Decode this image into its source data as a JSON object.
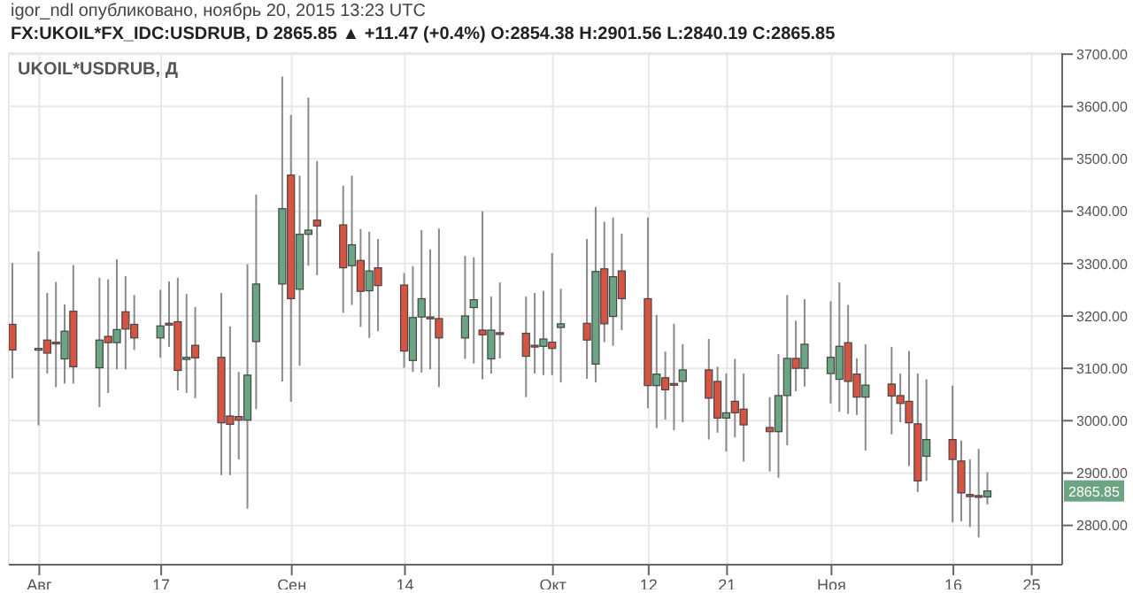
{
  "chart_data": {
    "type": "candlestick",
    "title": "UKOIL*USDRUB, Д",
    "subtitle": "FX:UKOIL*FX_IDC:USDRUB, D  2865.85 ▲ +11.47 (+0.4%) O:2854.38 H:2901.56 L:2840.19 C:2865.85",
    "annotations": [
      "igor_ndl опубликовано, ноябрь 20, 2015 13:23 UTC",
      {
        "text": "2865.85",
        "y": 2865.85
      }
    ],
    "x": [
      "2015-07-31",
      "2015-08-03",
      "2015-08-04",
      "2015-08-05",
      "2015-08-06",
      "2015-08-07",
      "2015-08-10",
      "2015-08-11",
      "2015-08-12",
      "2015-08-13",
      "2015-08-14",
      "2015-08-17",
      "2015-08-18",
      "2015-08-19",
      "2015-08-20",
      "2015-08-21",
      "2015-08-24",
      "2015-08-25",
      "2015-08-26",
      "2015-08-27",
      "2015-08-28",
      "2015-08-31",
      "2015-09-01",
      "2015-09-02",
      "2015-09-03",
      "2015-09-04",
      "2015-09-07",
      "2015-09-08",
      "2015-09-09",
      "2015-09-10",
      "2015-09-11",
      "2015-09-14",
      "2015-09-15",
      "2015-09-16",
      "2015-09-17",
      "2015-09-18",
      "2015-09-21",
      "2015-09-22",
      "2015-09-23",
      "2015-09-24",
      "2015-09-25",
      "2015-09-28",
      "2015-09-29",
      "2015-09-30",
      "2015-10-01",
      "2015-10-02",
      "2015-10-05",
      "2015-10-06",
      "2015-10-07",
      "2015-10-08",
      "2015-10-09",
      "2015-10-12",
      "2015-10-13",
      "2015-10-14",
      "2015-10-15",
      "2015-10-16",
      "2015-10-19",
      "2015-10-20",
      "2015-10-21",
      "2015-10-22",
      "2015-10-23",
      "2015-10-26",
      "2015-10-27",
      "2015-10-28",
      "2015-10-29",
      "2015-10-30",
      "2015-11-02",
      "2015-11-03",
      "2015-11-04",
      "2015-11-05",
      "2015-11-06",
      "2015-11-09",
      "2015-11-10",
      "2015-11-11",
      "2015-11-12",
      "2015-11-13",
      "2015-11-16",
      "2015-11-17",
      "2015-11-18",
      "2015-11-19",
      "2015-11-20"
    ],
    "ohlc": [
      [
        3184,
        3301,
        3081,
        3135
      ],
      [
        3135,
        3323,
        2991,
        3138
      ],
      [
        3154,
        3244,
        3090,
        3129
      ],
      [
        3150,
        3265,
        3064,
        3147
      ],
      [
        3118,
        3222,
        3071,
        3171
      ],
      [
        3209,
        3297,
        3071,
        3103
      ],
      [
        3101,
        3273,
        3026,
        3154
      ],
      [
        3161,
        3270,
        3053,
        3149
      ],
      [
        3149,
        3308,
        3098,
        3174
      ],
      [
        3208,
        3276,
        3098,
        3175
      ],
      [
        3184,
        3240,
        3135,
        3158
      ],
      [
        3158,
        3250,
        3120,
        3181
      ],
      [
        3186,
        3266,
        3141,
        3184
      ],
      [
        3189,
        3273,
        3058,
        3096
      ],
      [
        3117,
        3242,
        3053,
        3121
      ],
      [
        3144,
        3217,
        3043,
        3120
      ],
      [
        3121,
        3244,
        2896,
        2996
      ],
      [
        3009,
        3180,
        2896,
        2993
      ],
      [
        3008,
        3093,
        2926,
        3001
      ],
      [
        3001,
        3299,
        2832,
        3087
      ],
      [
        3151,
        3432,
        3022,
        3261
      ],
      [
        3261,
        3657,
        3075,
        3405
      ],
      [
        3469,
        3584,
        3036,
        3233
      ],
      [
        3251,
        3468,
        3105,
        3356
      ],
      [
        3356,
        3617,
        3296,
        3364
      ],
      [
        3383,
        3496,
        3278,
        3372
      ],
      [
        3374,
        3449,
        3206,
        3292
      ],
      [
        3296,
        3468,
        3221,
        3336
      ],
      [
        3306,
        3366,
        3179,
        3247
      ],
      [
        3248,
        3361,
        3158,
        3286
      ],
      [
        3292,
        3347,
        3171,
        3258
      ],
      [
        3259,
        3282,
        3101,
        3133
      ],
      [
        3115,
        3295,
        3093,
        3197
      ],
      [
        3198,
        3364,
        3092,
        3233
      ],
      [
        3198,
        3327,
        3098,
        3197
      ],
      [
        3195,
        3367,
        3064,
        3158
      ],
      [
        3158,
        3315,
        3118,
        3200
      ],
      [
        3216,
        3312,
        3109,
        3231
      ],
      [
        3173,
        3400,
        3079,
        3164
      ],
      [
        3118,
        3237,
        3090,
        3173
      ],
      [
        3168,
        3264,
        3119,
        3167
      ],
      [
        3167,
        3237,
        3045,
        3123
      ],
      [
        3144,
        3244,
        3090,
        3141
      ],
      [
        3142,
        3248,
        3087,
        3156
      ],
      [
        3150,
        3320,
        3087,
        3138
      ],
      [
        3178,
        3252,
        3073,
        3185
      ],
      [
        3186,
        3347,
        3080,
        3154
      ],
      [
        3108,
        3408,
        3073,
        3285
      ],
      [
        3290,
        3380,
        3150,
        3185
      ],
      [
        3199,
        3388,
        3143,
        3275
      ],
      [
        3286,
        3357,
        3173,
        3233
      ],
      [
        3233,
        3388,
        3024,
        3067
      ],
      [
        3067,
        3202,
        2986,
        3089
      ],
      [
        3082,
        3132,
        3002,
        3059
      ],
      [
        3071,
        3185,
        2982,
        3069
      ],
      [
        3075,
        3146,
        2997,
        3097
      ],
      [
        3097,
        3156,
        2964,
        3043
      ],
      [
        3075,
        3103,
        2977,
        3005
      ],
      [
        3005,
        3090,
        2941,
        3015
      ],
      [
        3037,
        3118,
        2968,
        3015
      ],
      [
        3022,
        3090,
        2922,
        2992
      ],
      [
        2987,
        3045,
        2903,
        2979
      ],
      [
        2979,
        3127,
        2891,
        3048
      ],
      [
        3048,
        3240,
        2953,
        3119
      ],
      [
        3119,
        3191,
        3056,
        3100
      ],
      [
        3100,
        3232,
        3065,
        3146
      ],
      [
        3090,
        3228,
        3033,
        3121
      ],
      [
        3079,
        3264,
        3017,
        3142
      ],
      [
        3149,
        3221,
        3013,
        3075
      ],
      [
        3089,
        3119,
        3011,
        3045
      ],
      [
        3045,
        3146,
        2943,
        3068
      ],
      [
        3070,
        3141,
        2974,
        3047
      ],
      [
        3048,
        3090,
        2997,
        3033
      ],
      [
        3037,
        3133,
        2913,
        2996
      ],
      [
        2994,
        3090,
        2864,
        2885
      ],
      [
        2932,
        3079,
        2885,
        2964
      ],
      [
        2964,
        3067,
        2806,
        2926
      ],
      [
        2923,
        2962,
        2808,
        2862
      ],
      [
        2859,
        2926,
        2797,
        2855
      ],
      [
        2857,
        2946,
        2777,
        2854
      ],
      [
        2854.38,
        2901.56,
        2840.19,
        2865.85
      ]
    ],
    "colors": [
      "#d75442",
      "#6ba583",
      "#d75442",
      "#d75442",
      "#6ba583",
      "#d75442",
      "#6ba583",
      "#d75442",
      "#6ba583",
      "#d75442",
      "#d75442",
      "#6ba583",
      "#d75442",
      "#d75442",
      "#6ba583",
      "#d75442",
      "#d75442",
      "#d75442",
      "#d75442",
      "#6ba583",
      "#6ba583",
      "#6ba583",
      "#d75442",
      "#6ba583",
      "#6ba583",
      "#d75442",
      "#d75442",
      "#6ba583",
      "#d75442",
      "#6ba583",
      "#d75442",
      "#d75442",
      "#6ba583",
      "#6ba583",
      "#d75442",
      "#d75442",
      "#6ba583",
      "#6ba583",
      "#d75442",
      "#6ba583",
      "#d75442",
      "#d75442",
      "#d75442",
      "#6ba583",
      "#d75442",
      "#6ba583",
      "#d75442",
      "#6ba583",
      "#d75442",
      "#6ba583",
      "#d75442",
      "#d75442",
      "#6ba583",
      "#d75442",
      "#d75442",
      "#6ba583",
      "#d75442",
      "#d75442",
      "#6ba583",
      "#d75442",
      "#d75442",
      "#d75442",
      "#6ba583",
      "#6ba583",
      "#d75442",
      "#6ba583",
      "#6ba583",
      "#6ba583",
      "#d75442",
      "#d75442",
      "#6ba583",
      "#d75442",
      "#d75442",
      "#d75442",
      "#d75442",
      "#6ba583",
      "#d75442",
      "#d75442",
      "#d75442",
      "#d75442",
      "#6ba583"
    ],
    "xlim": [
      "2015-07-30T12:00",
      "2015-11-28T12:00"
    ],
    "xticks": [
      {
        "value": "2015-08-03",
        "label": "Авг"
      },
      {
        "value": "2015-08-17",
        "label": "17"
      },
      {
        "value": "2015-09-01",
        "label": "Сен"
      },
      {
        "value": "2015-09-14",
        "label": "14"
      },
      {
        "value": "2015-10-01",
        "label": "Окт"
      },
      {
        "value": "2015-10-12",
        "label": "12"
      },
      {
        "value": "2015-10-21",
        "label": "21"
      },
      {
        "value": "2015-11-02",
        "label": "Ноя"
      },
      {
        "value": "2015-11-16",
        "label": "16"
      },
      {
        "value": "2015-11-25",
        "label": "25"
      }
    ],
    "ylim": [
      2725,
      3702
    ],
    "yticks": [
      {
        "value": 2800,
        "label": "2800.00"
      },
      {
        "value": 2900,
        "label": "2900.00"
      },
      {
        "value": 3000,
        "label": "3000.00"
      },
      {
        "value": 3100,
        "label": "3100.00"
      },
      {
        "value": 3200,
        "label": "3200.00"
      },
      {
        "value": 3300,
        "label": "3300.00"
      },
      {
        "value": 3400,
        "label": "3400.00"
      },
      {
        "value": 3500,
        "label": "3500.00"
      },
      {
        "value": 3600,
        "label": "3600.00"
      },
      {
        "value": 3700,
        "label": "3700.00"
      }
    ],
    "grid": true
  }
}
